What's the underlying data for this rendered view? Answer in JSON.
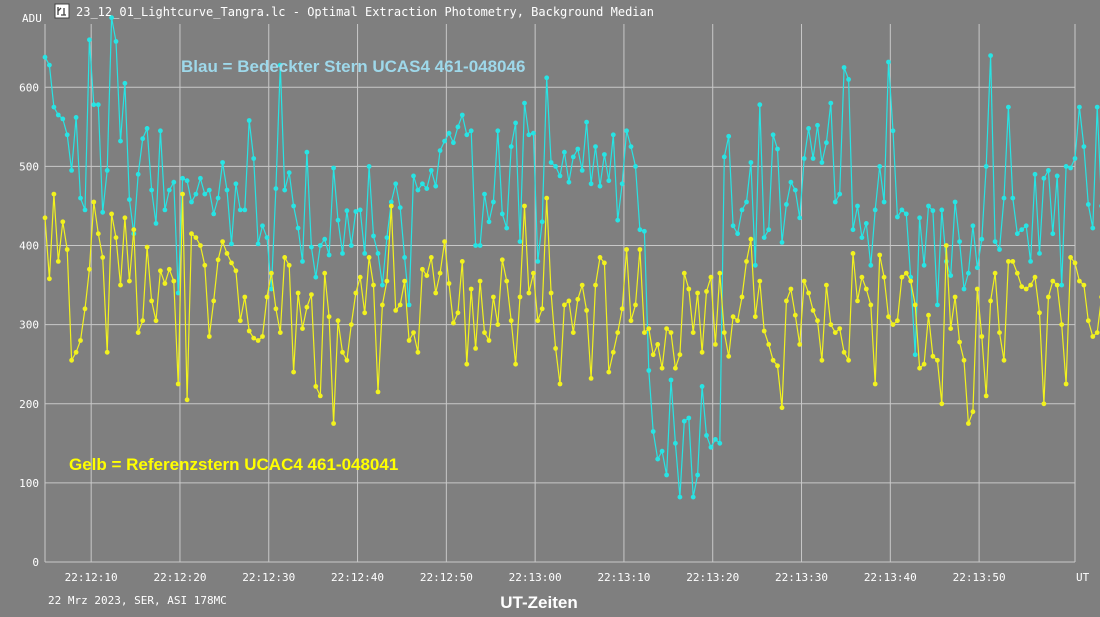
{
  "window": {
    "title": "23_12_01_Lightcurve_Tangra.lc - Optimal Extraction Photometry, Background Median",
    "icon": "lightcurve-app-icon"
  },
  "footer": {
    "info": "22 Mrz 2023, SER, ASI 178MC"
  },
  "colors": {
    "background": "#7f7f7f",
    "grid": "#c8c8c8",
    "target": "#27e4e4",
    "reference": "#f2f21e"
  },
  "chart_data": {
    "type": "line",
    "ylabel": "ADU",
    "xlabel": "UT-Zeiten",
    "x_unit_label": "UT",
    "ylim": [
      0,
      680
    ],
    "yticks": [
      0,
      100,
      200,
      300,
      400,
      500,
      600
    ],
    "xlim": [
      "22:12:04.8",
      "22:14:00.8"
    ],
    "xticks": [
      "22:12:10",
      "22:12:20",
      "22:12:30",
      "22:12:40",
      "22:12:50",
      "22:13:00",
      "22:13:10",
      "22:13:20",
      "22:13:30",
      "22:13:40",
      "22:13:50"
    ],
    "grid": true,
    "start_time": "22:12:04.8",
    "sample_interval_s": 0.5,
    "annotations": [
      {
        "text": "Blau = Bedeckter Stern UCAS4 461-048046",
        "series": "target"
      },
      {
        "text": "Gelb = Referenzstern  UCAC4 461-048041",
        "series": "reference"
      }
    ],
    "series": [
      {
        "name": "Blau = Bedeckter Stern UCAS4 461-048046",
        "key": "target",
        "color": "#27e4e4",
        "values": [
          638,
          628,
          575,
          565,
          560,
          540,
          495,
          562,
          460,
          445,
          660,
          578,
          578,
          442,
          495,
          688,
          658,
          532,
          605,
          458,
          415,
          490,
          535,
          548,
          470,
          428,
          545,
          445,
          470,
          480,
          340,
          485,
          482,
          455,
          465,
          485,
          465,
          470,
          440,
          460,
          505,
          470,
          402,
          478,
          445,
          445,
          558,
          510,
          402,
          425,
          410,
          345,
          472,
          628,
          470,
          492,
          450,
          422,
          380,
          518,
          398,
          360,
          400,
          408,
          388,
          498,
          432,
          390,
          444,
          400,
          443,
          445,
          390,
          500,
          412,
          390,
          350,
          410,
          455,
          478,
          448,
          385,
          325,
          488,
          470,
          478,
          472,
          495,
          475,
          520,
          532,
          542,
          530,
          550,
          565,
          540,
          545,
          400,
          400,
          465,
          430,
          455,
          545,
          440,
          422,
          525,
          555,
          405,
          580,
          540,
          542,
          380,
          430,
          612,
          505,
          500,
          488,
          518,
          480,
          512,
          522,
          495,
          556,
          478,
          525,
          475,
          515,
          482,
          540,
          432,
          478,
          545,
          525,
          500,
          420,
          418,
          242,
          165,
          130,
          140,
          110,
          230,
          150,
          82,
          178,
          182,
          82,
          110,
          222,
          160,
          145,
          155,
          150,
          512,
          538,
          425,
          415,
          445,
          455,
          505,
          375,
          578,
          410,
          420,
          540,
          522,
          404,
          452,
          480,
          470,
          435,
          510,
          548,
          510,
          552,
          505,
          530,
          580,
          455,
          465,
          625,
          610,
          420,
          450,
          410,
          428,
          375,
          445,
          500,
          455,
          632,
          545,
          436,
          445,
          440,
          360,
          262,
          435,
          375,
          450,
          444,
          325,
          445,
          380,
          362,
          455,
          405,
          345,
          365,
          425,
          372,
          408,
          500,
          640,
          405,
          395,
          460,
          575,
          460,
          415,
          420,
          425,
          380,
          490,
          390,
          485,
          495,
          415,
          488,
          350,
          500,
          498,
          510,
          575,
          525,
          452,
          422,
          575,
          450,
          560,
          462,
          508,
          465,
          548,
          518,
          590,
          570,
          448,
          455,
          460,
          408,
          490,
          560
        ]
      },
      {
        "name": "Gelb = Referenzstern  UCAC4 461-048041",
        "key": "reference",
        "color": "#f2f21e",
        "values": [
          435,
          358,
          465,
          380,
          430,
          395,
          255,
          265,
          280,
          320,
          370,
          455,
          415,
          385,
          265,
          440,
          410,
          350,
          435,
          355,
          420,
          290,
          305,
          398,
          330,
          305,
          368,
          352,
          370,
          355,
          225,
          465,
          205,
          415,
          410,
          400,
          375,
          285,
          330,
          382,
          405,
          390,
          378,
          368,
          305,
          335,
          292,
          283,
          280,
          285,
          335,
          365,
          320,
          290,
          385,
          375,
          240,
          340,
          295,
          322,
          338,
          222,
          210,
          365,
          310,
          175,
          305,
          265,
          255,
          300,
          340,
          360,
          315,
          385,
          350,
          215,
          325,
          355,
          450,
          318,
          325,
          355,
          280,
          290,
          265,
          370,
          362,
          385,
          340,
          365,
          405,
          352,
          302,
          315,
          380,
          250,
          345,
          270,
          355,
          290,
          280,
          335,
          300,
          382,
          355,
          305,
          250,
          335,
          450,
          340,
          365,
          305,
          320,
          460,
          340,
          270,
          225,
          325,
          330,
          290,
          332,
          350,
          318,
          232,
          350,
          385,
          378,
          240,
          265,
          290,
          320,
          395,
          305,
          325,
          395,
          290,
          295,
          262,
          275,
          245,
          295,
          290,
          245,
          262,
          365,
          345,
          290,
          340,
          265,
          342,
          360,
          275,
          365,
          290,
          260,
          310,
          305,
          335,
          380,
          408,
          310,
          355,
          292,
          275,
          255,
          248,
          195,
          330,
          345,
          312,
          275,
          355,
          340,
          318,
          305,
          255,
          350,
          300,
          290,
          295,
          265,
          255,
          390,
          330,
          360,
          345,
          325,
          225,
          388,
          360,
          310,
          300,
          305,
          360,
          365,
          355,
          325,
          245,
          250,
          312,
          260,
          255,
          200,
          400,
          295,
          335,
          278,
          255,
          175,
          190,
          345,
          285,
          210,
          330,
          365,
          290,
          255,
          380,
          380,
          365,
          348,
          345,
          350,
          360,
          315,
          200,
          335,
          355,
          350,
          300,
          225,
          385,
          378,
          355,
          350,
          305,
          285,
          290,
          335,
          325,
          335,
          245,
          350,
          335,
          270,
          305,
          310,
          350,
          282,
          388,
          395,
          338,
          218,
          295
        ]
      }
    ]
  }
}
